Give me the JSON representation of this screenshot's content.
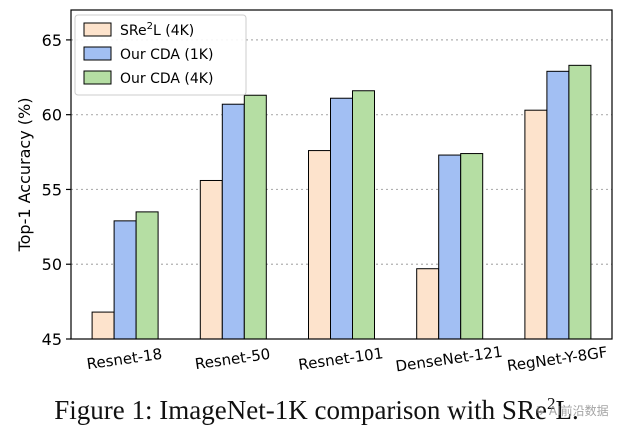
{
  "chart_data": {
    "type": "bar",
    "categories": [
      "Resnet-18",
      "Resnet-50",
      "Resnet-101",
      "DenseNet-121",
      "RegNet-Y-8GF"
    ],
    "series": [
      {
        "name_main": "SRe",
        "name_sup": "2",
        "name_tail": "L (4K)",
        "values": [
          46.8,
          55.6,
          57.6,
          49.7,
          60.3
        ],
        "color": "#fde3cc"
      },
      {
        "name": "Our CDA (1K)",
        "values": [
          52.9,
          60.7,
          61.1,
          57.3,
          62.9
        ],
        "color": "#a2bff3"
      },
      {
        "name": "Our CDA (4K)",
        "values": [
          53.5,
          61.3,
          61.6,
          57.4,
          63.3
        ],
        "color": "#b5dea3"
      }
    ],
    "ylabel": "Top-1 Accuracy (%)",
    "xlabel": "",
    "ylim": [
      45,
      67
    ],
    "yticks": [
      45,
      50,
      55,
      60,
      65
    ],
    "grid": "horizontal-dotted",
    "legend": "top-left"
  },
  "caption": {
    "prefix": "Figure 1: ImageNet-1K comparison with SRe",
    "sup": "2",
    "suffix": "L."
  },
  "watermark": "↳ AI前沿数据"
}
